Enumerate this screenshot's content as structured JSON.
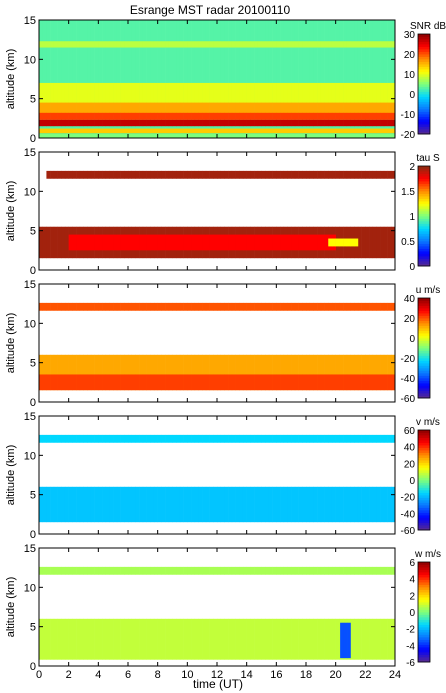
{
  "title": "Esrange MST radar 20100110",
  "xlabel": "time (UT)",
  "chart_data": [
    {
      "type": "heatmap",
      "ylabel": "altitude (km)",
      "colorbar_label": "SNR dB",
      "x": {
        "min": 0,
        "max": 24,
        "ticks": [
          0,
          2,
          4,
          6,
          8,
          10,
          12,
          14,
          16,
          18,
          20,
          22,
          24
        ]
      },
      "y": {
        "min": 0,
        "max": 15,
        "ticks": [
          0,
          5,
          10,
          15
        ]
      },
      "colorbar": {
        "min": -20,
        "max": 30,
        "ticks": [
          -20,
          -10,
          0,
          10,
          20,
          30
        ]
      },
      "colormap": [
        "#5a2c8c",
        "#0000ff",
        "#0a78ff",
        "#00d8ff",
        "#7dff7d",
        "#ffff00",
        "#ff8c00",
        "#ff0000",
        "#8b0000"
      ],
      "layers": [
        {
          "alt": [
            0,
            15
          ],
          "t": [
            0,
            24
          ],
          "value": 3
        },
        {
          "alt": [
            11.5,
            12.3
          ],
          "t": [
            0,
            24
          ],
          "value": 8
        },
        {
          "alt": [
            4,
            7
          ],
          "t": [
            0,
            24
          ],
          "value": 10
        },
        {
          "alt": [
            3,
            4.5
          ],
          "t": [
            0,
            24
          ],
          "value": 16
        },
        {
          "alt": [
            2.3,
            3.2
          ],
          "t": [
            0,
            24
          ],
          "value": 21
        },
        {
          "alt": [
            1.5,
            2.3
          ],
          "t": [
            0,
            24
          ],
          "value": 27
        },
        {
          "alt": [
            0.6,
            1.2
          ],
          "t": [
            0,
            24
          ],
          "value": 14
        },
        {
          "alt": [
            0,
            0.5
          ],
          "t": [
            0,
            24
          ],
          "value": 5
        }
      ]
    },
    {
      "type": "heatmap",
      "ylabel": "altitude (km)",
      "colorbar_label": "tau S",
      "x": {
        "min": 0,
        "max": 24,
        "ticks": [
          0,
          2,
          4,
          6,
          8,
          10,
          12,
          14,
          16,
          18,
          20,
          22,
          24
        ]
      },
      "y": {
        "min": 0,
        "max": 15,
        "ticks": [
          0,
          5,
          10,
          15
        ]
      },
      "colorbar": {
        "min": 0,
        "max": 2,
        "ticks": [
          0,
          0.5,
          1,
          1.5,
          2
        ]
      },
      "colormap": [
        "#5a2c8c",
        "#0000ff",
        "#0a78ff",
        "#00d8ff",
        "#7dff7d",
        "#ffff00",
        "#ff8c00",
        "#ff0000",
        "#8b2b10"
      ],
      "layers": [
        {
          "alt": [
            11.6,
            12.6
          ],
          "t": [
            0.5,
            24
          ],
          "value": 1.95
        },
        {
          "alt": [
            1.5,
            5.5
          ],
          "t": [
            0,
            24
          ],
          "value": 1.95
        },
        {
          "alt": [
            2.5,
            4.5
          ],
          "t": [
            2,
            20
          ],
          "value": 1.75
        },
        {
          "alt": [
            3,
            4
          ],
          "t": [
            19.5,
            21.5
          ],
          "value": 1.25
        }
      ]
    },
    {
      "type": "heatmap",
      "ylabel": "altitude (km)",
      "colorbar_label": "u m/s",
      "x": {
        "min": 0,
        "max": 24,
        "ticks": [
          0,
          2,
          4,
          6,
          8,
          10,
          12,
          14,
          16,
          18,
          20,
          22,
          24
        ]
      },
      "y": {
        "min": 0,
        "max": 15,
        "ticks": [
          0,
          5,
          10,
          15
        ]
      },
      "colorbar": {
        "min": -60,
        "max": 40,
        "ticks": [
          -60,
          -40,
          -20,
          0,
          20,
          40
        ]
      },
      "colormap": [
        "#5a2c8c",
        "#0000ff",
        "#0a78ff",
        "#00d8ff",
        "#7dff7d",
        "#ffff00",
        "#ff8c00",
        "#ff0000",
        "#8b0000"
      ],
      "layers": [
        {
          "alt": [
            11.6,
            12.6
          ],
          "t": [
            0,
            24
          ],
          "value": 20
        },
        {
          "alt": [
            1.5,
            6
          ],
          "t": [
            0,
            24
          ],
          "value": 12
        },
        {
          "alt": [
            1.5,
            3.5
          ],
          "t": [
            0,
            24
          ],
          "value": 22
        }
      ]
    },
    {
      "type": "heatmap",
      "ylabel": "altitude (km)",
      "colorbar_label": "v m/s",
      "x": {
        "min": 0,
        "max": 24,
        "ticks": [
          0,
          2,
          4,
          6,
          8,
          10,
          12,
          14,
          16,
          18,
          20,
          22,
          24
        ]
      },
      "y": {
        "min": 0,
        "max": 15,
        "ticks": [
          0,
          5,
          10,
          15
        ]
      },
      "colorbar": {
        "min": -60,
        "max": 60,
        "ticks": [
          -60,
          -40,
          -20,
          0,
          20,
          40,
          60
        ]
      },
      "colormap": [
        "#5a2c8c",
        "#0000ff",
        "#0a78ff",
        "#00d8ff",
        "#7dff7d",
        "#ffff00",
        "#ff8c00",
        "#ff0000",
        "#8b0000"
      ],
      "layers": [
        {
          "alt": [
            11.6,
            12.6
          ],
          "t": [
            0,
            24
          ],
          "value": -15
        },
        {
          "alt": [
            1.5,
            6
          ],
          "t": [
            0,
            24
          ],
          "value": -18
        }
      ]
    },
    {
      "type": "heatmap",
      "ylabel": "altitude (km)",
      "colorbar_label": "w m/s",
      "x": {
        "min": 0,
        "max": 24,
        "ticks": [
          0,
          2,
          4,
          6,
          8,
          10,
          12,
          14,
          16,
          18,
          20,
          22,
          24
        ]
      },
      "y": {
        "min": 0,
        "max": 15,
        "ticks": [
          0,
          5,
          10,
          15
        ]
      },
      "colorbar": {
        "min": -6,
        "max": 6,
        "ticks": [
          -6,
          -4,
          -2,
          0,
          2,
          4,
          6
        ]
      },
      "colormap": [
        "#5a2c8c",
        "#0000ff",
        "#0a78ff",
        "#00d8ff",
        "#7dff7d",
        "#ffff00",
        "#ff8c00",
        "#ff0000",
        "#8b0000"
      ],
      "layers": [
        {
          "alt": [
            11.6,
            12.6
          ],
          "t": [
            0,
            24
          ],
          "value": 0.5
        },
        {
          "alt": [
            0.8,
            6
          ],
          "t": [
            0,
            24
          ],
          "value": 0.8
        },
        {
          "alt": [
            1,
            5.5
          ],
          "t": [
            20.3,
            21
          ],
          "value": -3.5
        }
      ]
    }
  ]
}
